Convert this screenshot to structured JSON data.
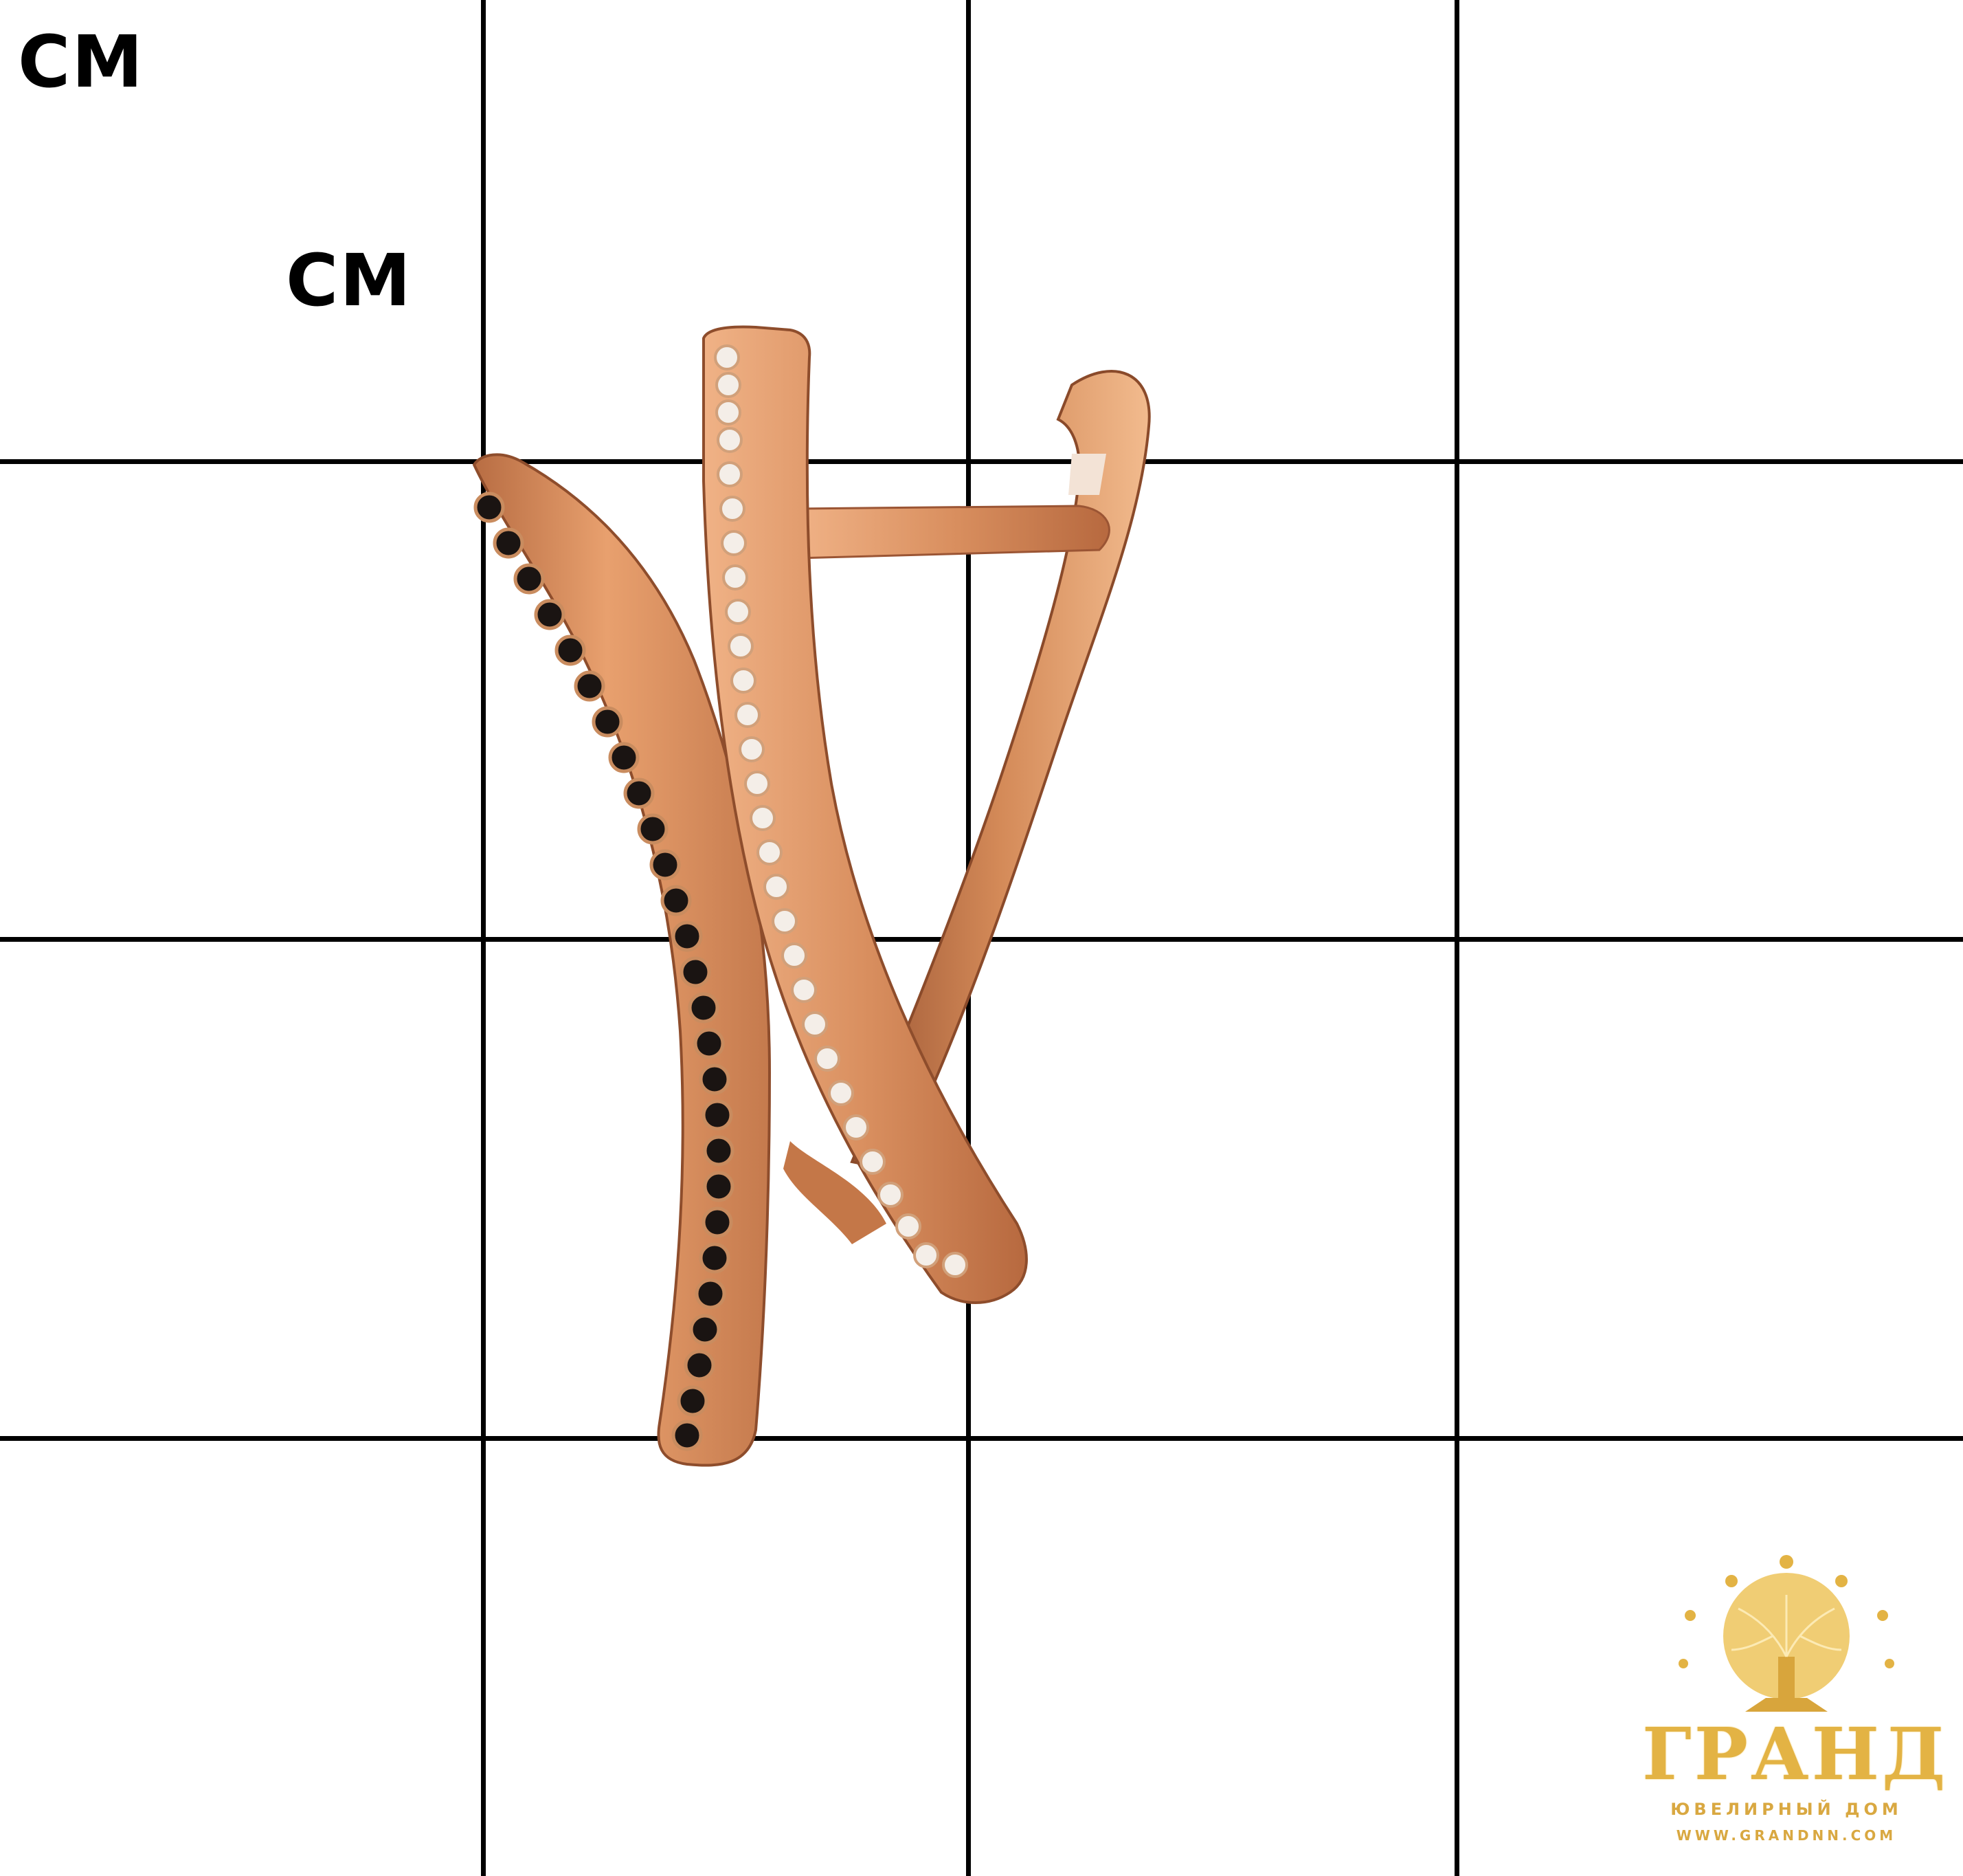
{
  "labels": {
    "cm_top": "CM",
    "cm_second": "CM"
  },
  "logo": {
    "title": "ГРАНД",
    "subtitle": "ЮВЕЛИРНЫЙ ДОМ",
    "url": "WWW.GRANDNN.COM"
  },
  "colors": {
    "background": "#ffffff",
    "grid": "#000000",
    "gold": "#d98f5f",
    "gold_highlight": "#f6c29a",
    "gold_shadow": "#a8613a",
    "black_stone": "#1a1412",
    "white_stone": "#f4eee8",
    "logo_gold": "#e3b344"
  }
}
